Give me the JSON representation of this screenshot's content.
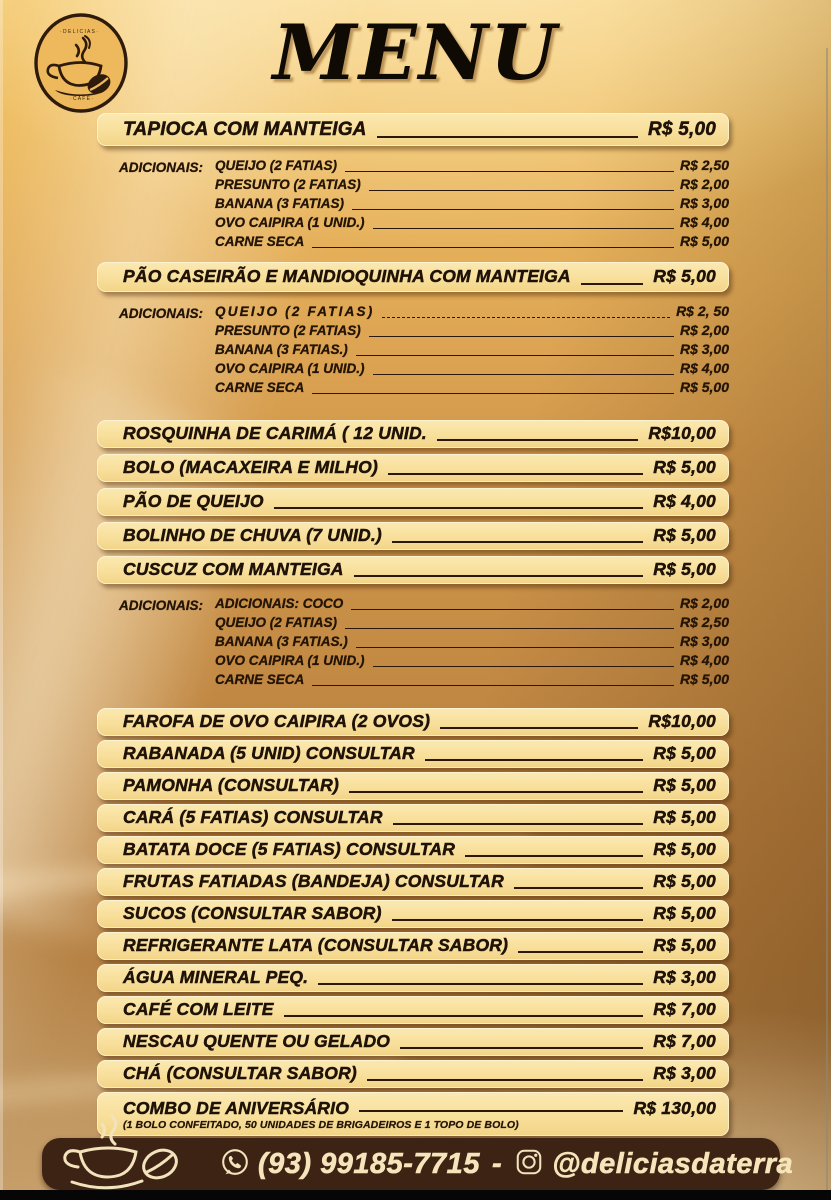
{
  "title": "MENU",
  "adicionais_label": "ADICIONAIS:",
  "colors": {
    "background_top": "#f4ca74",
    "background_mid": "#c68d46",
    "bar_fill": "#f8df9b",
    "bar_text": "#1f1206",
    "footer_bg": "#3d2313",
    "footer_text": "#f6e5ba"
  },
  "sections": [
    {
      "type": "item",
      "style": "lg",
      "name": "TAPIOCA COM MANTEIGA",
      "price": "R$ 5,00"
    },
    {
      "type": "addons",
      "rows": [
        {
          "name": "QUEIJO (2 FATIAS)",
          "price": "R$ 2,50"
        },
        {
          "name": "PRESUNTO (2 FATIAS)",
          "price": "R$ 2,00"
        },
        {
          "name": "BANANA (3 FATIAS)",
          "price": "R$ 3,00"
        },
        {
          "name": "OVO CAIPIRA (1 UNID.)",
          "price": "R$ 4,00"
        },
        {
          "name": "CARNE SECA",
          "price": "R$ 5,00"
        }
      ]
    },
    {
      "type": "item",
      "style": "md",
      "name": "PÃO CASEIRÃO E MANDIOQUINHA COM MANTEIGA",
      "price": "R$ 5,00"
    },
    {
      "type": "addons",
      "rows": [
        {
          "name": "QUEIJO (2 FATIAS)",
          "price": "R$ 2, 50",
          "dashed": true,
          "spaced": true
        },
        {
          "name": "PRESUNTO (2 FATIAS)",
          "price": "R$ 2,00"
        },
        {
          "name": "BANANA (3 FATIAS.)",
          "price": "R$ 3,00"
        },
        {
          "name": "OVO CAIPIRA (1 UNID.)",
          "price": "R$ 4,00"
        },
        {
          "name": "CARNE SECA",
          "price": "R$ 5,00"
        }
      ]
    },
    {
      "type": "item",
      "gap": "gap12",
      "name": "ROSQUINHA DE CARIMÁ ( 12 UNID.",
      "price": "R$10,00"
    },
    {
      "type": "item",
      "name": "BOLO (MACAXEIRA E MILHO)",
      "price": "R$ 5,00"
    },
    {
      "type": "item",
      "name": "PÃO DE QUEIJO",
      "price": "R$ 4,00"
    },
    {
      "type": "item",
      "name": "BOLINHO DE CHUVA (7 UNID.)",
      "price": "R$ 5,00"
    },
    {
      "type": "item",
      "name": "CUSCUZ COM MANTEIGA",
      "price": "R$ 5,00"
    },
    {
      "type": "addons",
      "rows": [
        {
          "name": "ADICIONAIS: COCO",
          "price": "R$ 2,00"
        },
        {
          "name": "QUEIJO (2 FATIAS)",
          "price": "R$ 2,50"
        },
        {
          "name": "BANANA (3 FATIAS.)",
          "price": "R$ 3,00"
        },
        {
          "name": "OVO CAIPIRA (1 UNID.)",
          "price": "R$ 4,00"
        },
        {
          "name": "CARNE SECA",
          "price": "R$ 5,00"
        }
      ]
    },
    {
      "type": "item",
      "gap": "gap8",
      "tight": true,
      "name": "FAROFA DE OVO CAIPIRA (2 OVOS)",
      "price": "R$10,00"
    },
    {
      "type": "item",
      "tight": true,
      "name": "RABANADA (5 UNID) CONSULTAR",
      "price": "R$ 5,00"
    },
    {
      "type": "item",
      "tight": true,
      "name": "PAMONHA (CONSULTAR)",
      "price": "R$ 5,00"
    },
    {
      "type": "item",
      "tight": true,
      "name": "CARÁ (5 FATIAS) CONSULTAR",
      "price": "R$ 5,00"
    },
    {
      "type": "item",
      "tight": true,
      "name": "BATATA DOCE (5 FATIAS) CONSULTAR",
      "price": "R$ 5,00"
    },
    {
      "type": "item",
      "tight": true,
      "name": "FRUTAS FATIADAS (BANDEJA) CONSULTAR",
      "price": "R$ 5,00"
    },
    {
      "type": "item",
      "tight": true,
      "name": "SUCOS (CONSULTAR SABOR)",
      "price": "R$ 5,00"
    },
    {
      "type": "item",
      "tight": true,
      "name": "REFRIGERANTE LATA (CONSULTAR SABOR)",
      "price": "R$ 5,00"
    },
    {
      "type": "item",
      "tight": true,
      "name": "ÁGUA MINERAL PEQ.",
      "price": "R$ 3,00"
    },
    {
      "type": "item",
      "tight": true,
      "name": "CAFÉ COM LEITE",
      "price": "R$ 7,00"
    },
    {
      "type": "item",
      "tight": true,
      "name": "NESCAU QUENTE OU GELADO",
      "price": "R$ 7,00"
    },
    {
      "type": "item",
      "tight": true,
      "name": "CHÁ (CONSULTAR SABOR)",
      "price": "R$ 3,00"
    },
    {
      "type": "item",
      "combo": true,
      "name": "COMBO DE ANIVERSÁRIO",
      "price": "R$ 130,00",
      "note": "(1 BOLO CONFEITADO, 50 UNIDADES DE BRIGADEIROS E 1 TOPO DE BOLO)"
    }
  ],
  "footer": {
    "phone": "(93) 99185-7715",
    "separator": "-",
    "instagram_handle": "@deliciasdaterra"
  }
}
